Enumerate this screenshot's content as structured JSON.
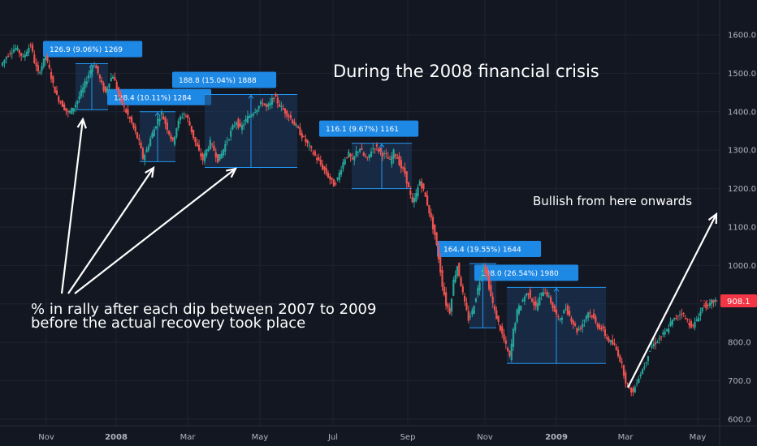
{
  "chart_data": {
    "type": "candlestick",
    "y_ticks": [
      "1600.0",
      "1500.0",
      "1400.0",
      "1300.0",
      "1200.0",
      "1100.0",
      "1000.0",
      "900.0",
      "800.0",
      "700.0",
      "600.0"
    ],
    "ylim": [
      580,
      1650
    ],
    "x_ticks": [
      {
        "label": "Nov",
        "bold": false
      },
      {
        "label": "2008",
        "bold": true
      },
      {
        "label": "Mar",
        "bold": false
      },
      {
        "label": "May",
        "bold": false
      },
      {
        "label": "Jul",
        "bold": false
      },
      {
        "label": "Sep",
        "bold": false
      },
      {
        "label": "Nov",
        "bold": false
      },
      {
        "label": "2009",
        "bold": true
      },
      {
        "label": "Mar",
        "bold": false
      },
      {
        "label": "May",
        "bold": false
      }
    ],
    "last_price": {
      "label": "908.1",
      "value": 908.1,
      "color": "#f23645"
    },
    "colors": {
      "up": "#26a69a",
      "down": "#ef5350",
      "measure_fill": "#1e3a5f",
      "measure_line": "#2196f3",
      "label_bg": "#1e88e5"
    },
    "price_path": [
      1520,
      1535,
      1550,
      1560,
      1565,
      1555,
      1540,
      1560,
      1575,
      1530,
      1500,
      1520,
      1545,
      1510,
      1470,
      1440,
      1425,
      1410,
      1395,
      1405,
      1420,
      1440,
      1460,
      1485,
      1510,
      1525,
      1500,
      1470,
      1450,
      1480,
      1495,
      1460,
      1430,
      1410,
      1390,
      1370,
      1345,
      1320,
      1280,
      1300,
      1330,
      1355,
      1380,
      1395,
      1370,
      1345,
      1320,
      1360,
      1385,
      1395,
      1380,
      1350,
      1320,
      1295,
      1275,
      1300,
      1320,
      1300,
      1275,
      1290,
      1315,
      1335,
      1360,
      1375,
      1355,
      1370,
      1385,
      1395,
      1405,
      1415,
      1425,
      1410,
      1420,
      1440,
      1425,
      1410,
      1400,
      1390,
      1375,
      1360,
      1345,
      1330,
      1315,
      1300,
      1285,
      1270,
      1255,
      1240,
      1225,
      1210,
      1225,
      1255,
      1280,
      1290,
      1270,
      1295,
      1305,
      1285,
      1275,
      1300,
      1310,
      1300,
      1290,
      1285,
      1270,
      1295,
      1280,
      1255,
      1240,
      1200,
      1160,
      1185,
      1220,
      1195,
      1160,
      1120,
      1080,
      1020,
      950,
      900,
      880,
      960,
      1000,
      950,
      900,
      860,
      880,
      920,
      960,
      1000,
      970,
      920,
      880,
      850,
      820,
      790,
      760,
      830,
      880,
      900,
      920,
      930,
      910,
      890,
      915,
      935,
      925,
      905,
      880,
      860,
      870,
      890,
      870,
      850,
      830,
      840,
      860,
      880,
      870,
      850,
      840,
      830,
      810,
      800,
      790,
      770,
      740,
      700,
      680,
      670,
      700,
      720,
      740,
      770,
      790,
      800,
      810,
      820,
      830,
      850,
      860,
      870,
      880,
      860,
      850,
      840,
      860,
      880,
      900,
      890,
      905,
      908
    ],
    "measurements": [
      {
        "label": "126.9 (9.06%) 1269",
        "x0": 93,
        "x1": 133,
        "ylo": 1405,
        "yhi": 1525
      },
      {
        "label": "128.4 (10.11%) 1284",
        "x0": 172,
        "x1": 216,
        "ylo": 1270,
        "yhi": 1400
      },
      {
        "label": "188.8 (15.04%) 1888",
        "x0": 252,
        "x1": 366,
        "ylo": 1255,
        "yhi": 1445
      },
      {
        "label": "116.1 (9.67%) 1161",
        "x0": 433,
        "x1": 507,
        "ylo": 1200,
        "yhi": 1318
      },
      {
        "label": "164.4 (19.55%) 1644",
        "x0": 578,
        "x1": 611,
        "ylo": 838,
        "yhi": 1005
      },
      {
        "label": "198.0 (26.54%) 1980",
        "x0": 624,
        "x1": 746,
        "ylo": 745,
        "yhi": 943
      }
    ],
    "annotations": {
      "title": "During the 2008 financial crisis",
      "bullish": "Bullish from here onwards",
      "rally_line1": "% in rally after each dip between 2007 to 2009",
      "rally_line2": "before the actual recovery took place"
    }
  }
}
